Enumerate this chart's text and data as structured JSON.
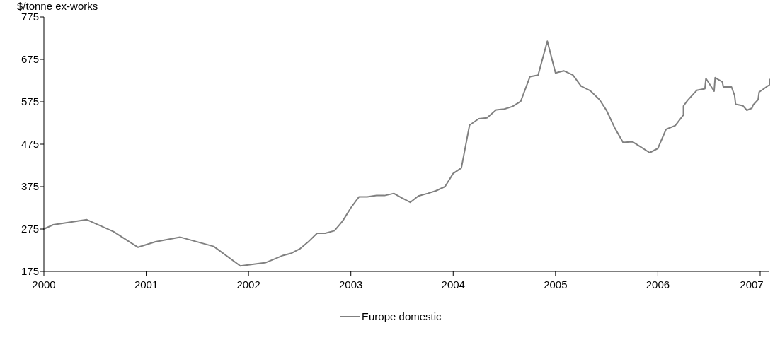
{
  "chart_data": {
    "type": "line",
    "ylabel": "$/tonne ex-works",
    "xlim": [
      2000,
      2007.09
    ],
    "xticks": [
      2000,
      2001,
      2002,
      2003,
      2004,
      2005,
      2006,
      2007
    ],
    "ylim": [
      175,
      775
    ],
    "yticks": [
      175,
      275,
      375,
      475,
      575,
      675,
      775
    ],
    "grid": false,
    "legend": "bottom",
    "marker": "none",
    "line_style": "solid",
    "series": [
      {
        "name": "Europe domestic",
        "color": "#808080",
        "x": [
          2000.0,
          2000.09,
          2000.42,
          2000.68,
          2000.92,
          2001.09,
          2001.33,
          2001.66,
          2001.92,
          2002.17,
          2002.25,
          2002.34,
          2002.42,
          2002.5,
          2002.58,
          2002.67,
          2002.75,
          2002.84,
          2002.92,
          2003.0,
          2003.08,
          2003.16,
          2003.25,
          2003.33,
          2003.42,
          2003.5,
          2003.58,
          2003.66,
          2003.75,
          2003.83,
          2003.92,
          2004.0,
          2004.08,
          2004.16,
          2004.25,
          2004.33,
          2004.42,
          2004.5,
          2004.58,
          2004.66,
          2004.75,
          2004.83,
          2004.92,
          2005.0,
          2005.08,
          2005.17,
          2005.25,
          2005.34,
          2005.43,
          2005.5,
          2005.58,
          2005.66,
          2005.75,
          2005.83,
          2005.92,
          2006.0,
          2006.08,
          2006.17,
          2006.25,
          2006.25,
          2006.29,
          2006.38,
          2006.46,
          2006.47,
          2006.55,
          2006.56,
          2006.63,
          2006.64,
          2006.72,
          2006.75,
          2006.76,
          2006.83,
          2006.87,
          2006.92,
          2006.93,
          2006.98,
          2006.99,
          2007.09,
          2007.09
        ],
        "values": [
          275,
          285,
          297,
          269,
          232,
          245,
          256,
          234,
          188,
          196,
          204,
          213,
          218,
          228,
          244,
          265,
          265,
          271,
          294,
          325,
          351,
          351,
          354,
          354,
          359,
          348,
          338,
          353,
          359,
          365,
          375,
          406,
          419,
          520,
          535,
          537,
          556,
          558,
          564,
          576,
          634,
          638,
          718,
          643,
          648,
          638,
          612,
          601,
          580,
          554,
          513,
          479,
          481,
          469,
          455,
          465,
          510,
          519,
          544,
          565,
          578,
          602,
          606,
          630,
          600,
          632,
          622,
          610,
          610,
          590,
          569,
          566,
          555,
          560,
          567,
          580,
          598,
          615,
          628
        ]
      }
    ]
  }
}
